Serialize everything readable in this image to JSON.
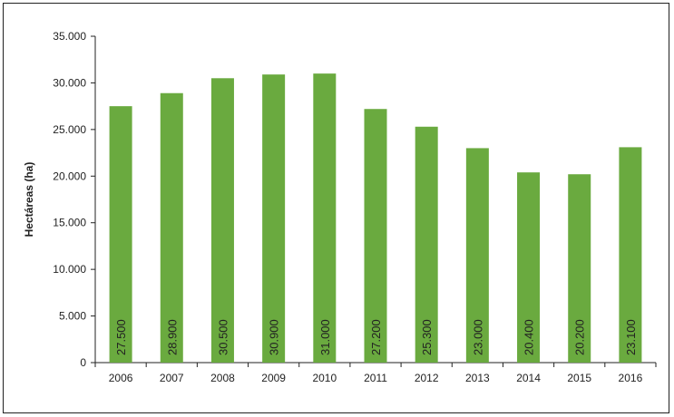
{
  "chart_data": {
    "type": "bar",
    "title": "",
    "xlabel": "",
    "ylabel": "Hectáreas (ha)",
    "categories": [
      "2006",
      "2007",
      "2008",
      "2009",
      "2010",
      "2011",
      "2012",
      "2013",
      "2014",
      "2015",
      "2016"
    ],
    "values": [
      27500,
      28900,
      30500,
      30900,
      31000,
      27200,
      25300,
      23000,
      20400,
      20200,
      23100
    ],
    "data_labels": [
      "27.500",
      "28.900",
      "30.500",
      "30.900",
      "31.000",
      "27.200",
      "25.300",
      "23.000",
      "20.400",
      "20.200",
      "23.100"
    ],
    "ylim": [
      0,
      35000
    ],
    "yticks": [
      0,
      5000,
      10000,
      15000,
      20000,
      25000,
      30000,
      35000
    ],
    "ytick_labels": [
      "0",
      "5.000",
      "10.000",
      "15.000",
      "20.000",
      "25.000",
      "30.000",
      "35.000"
    ],
    "grid": false,
    "legend": "none",
    "bar_color": "#6aaa3f"
  }
}
